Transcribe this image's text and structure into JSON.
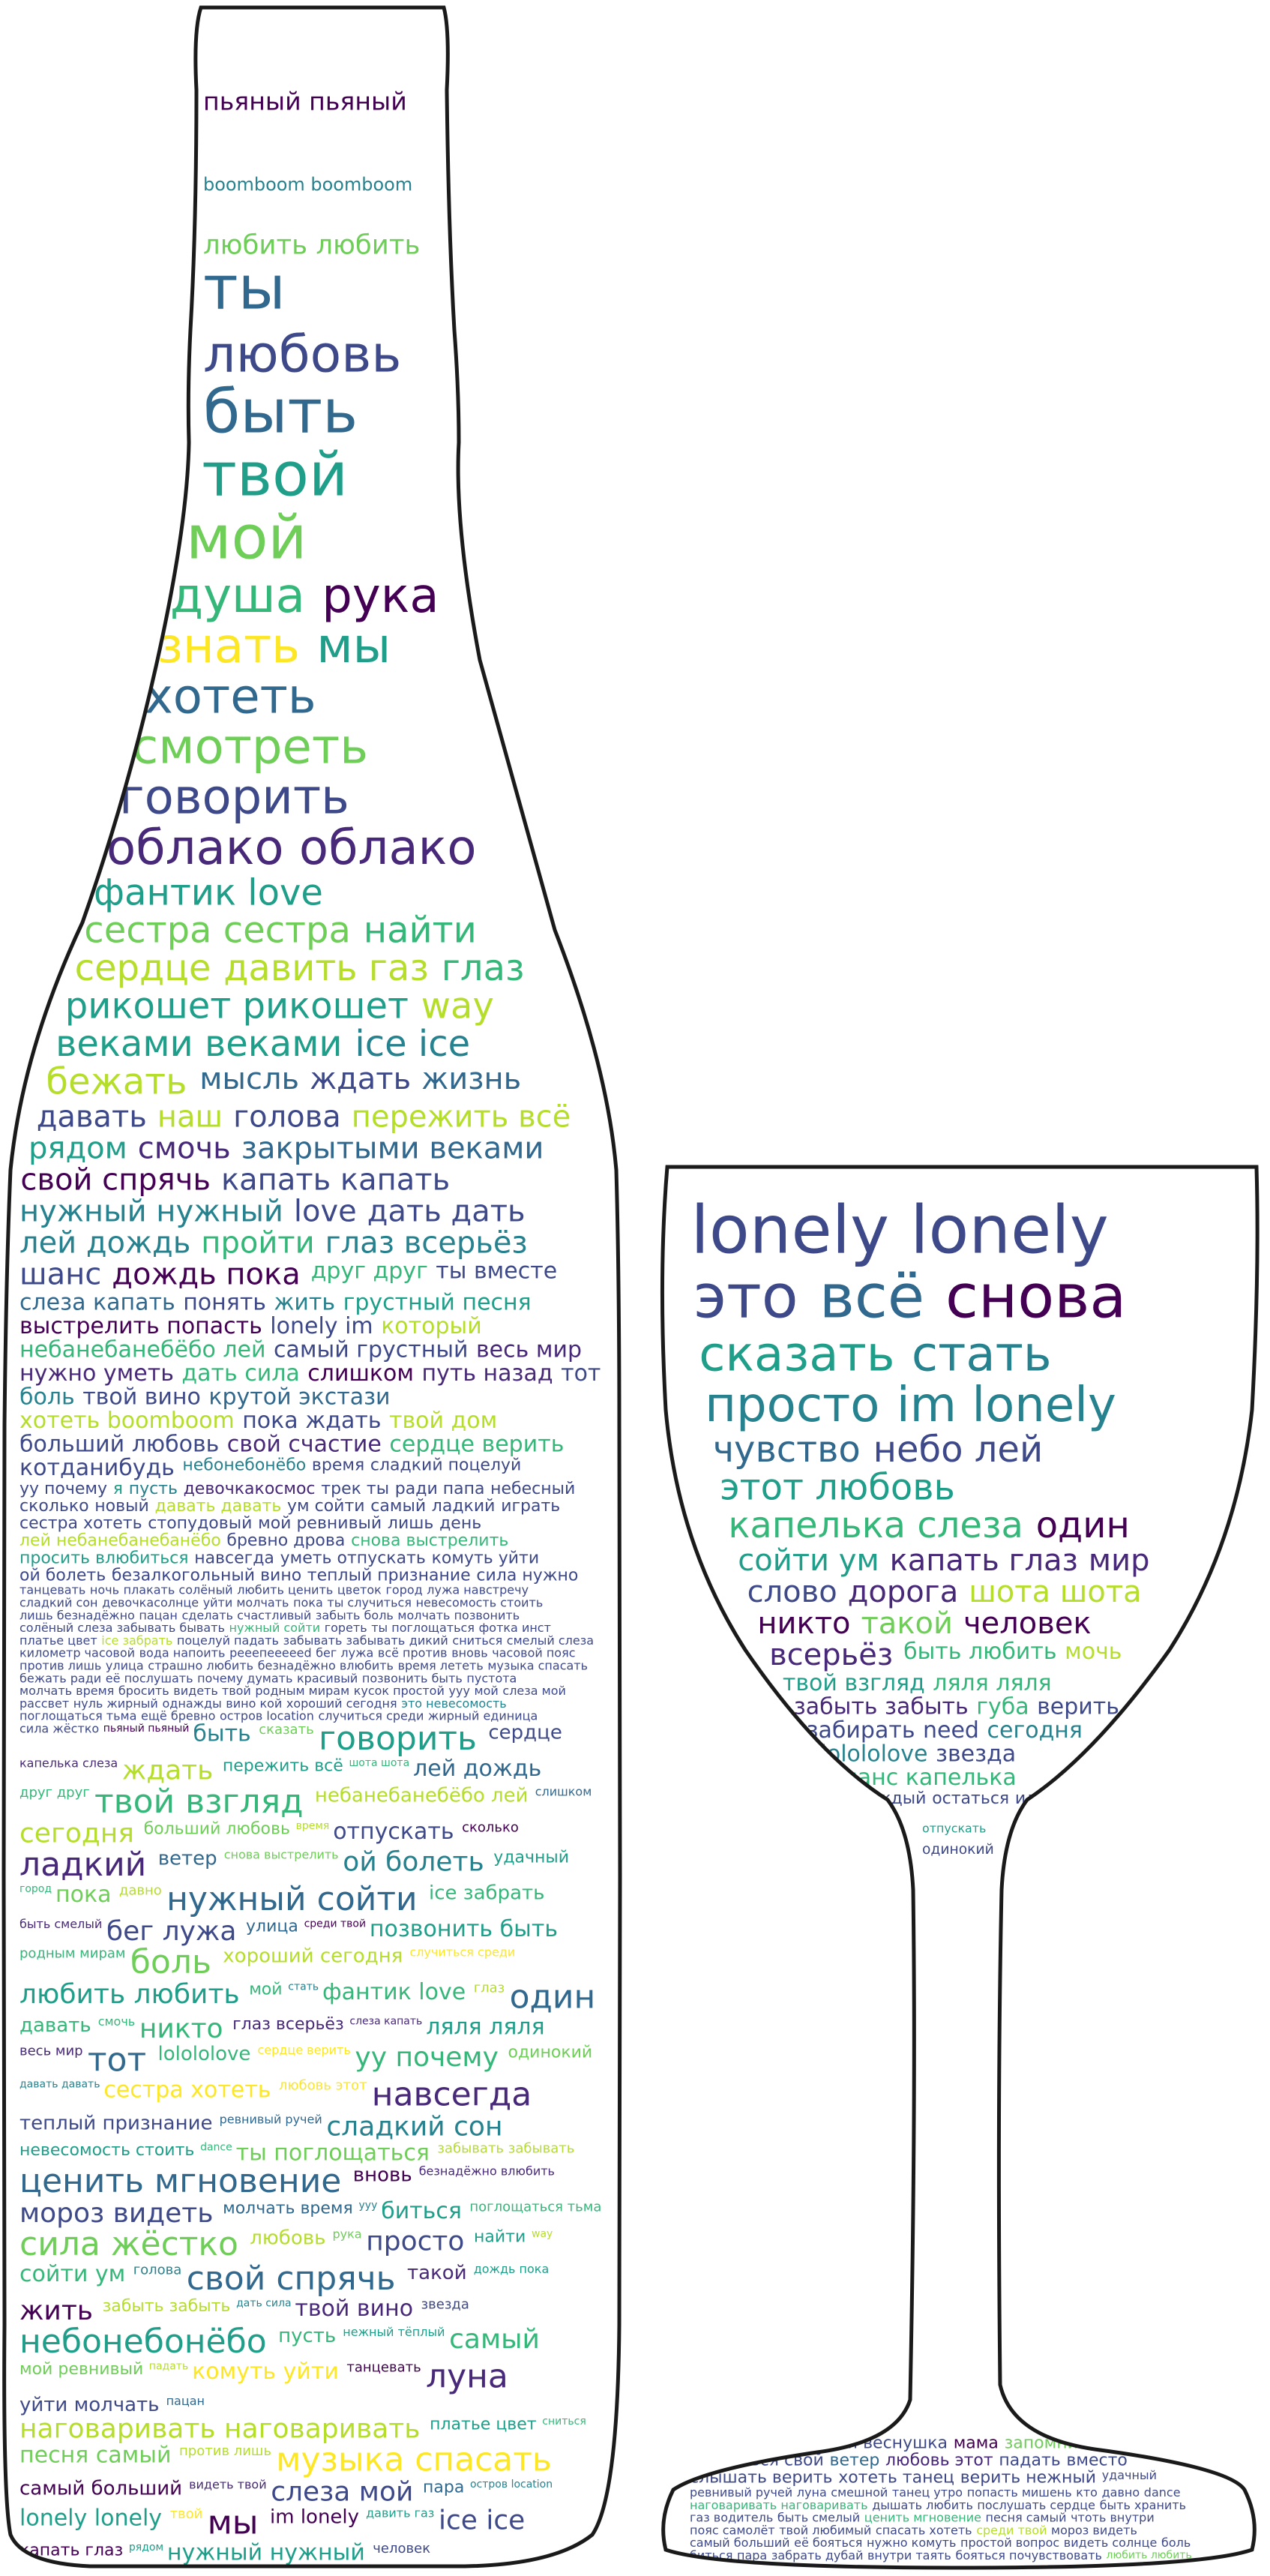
{
  "palette": {
    "background": "#ffffff",
    "outline": "#1a1a1a",
    "colors": [
      "#440154",
      "#482878",
      "#3e4989",
      "#31688e",
      "#26828e",
      "#1f9e89",
      "#35b779",
      "#6ece58",
      "#b5de2b",
      "#fde725"
    ]
  },
  "words": [
    {
      "t": "пьяный пьяный",
      "c": 0
    },
    {
      "t": "boomboom boomboom",
      "c": 4
    },
    {
      "t": "lonely lonely",
      "c": 2
    },
    {
      "t": "любить любить",
      "c": 7
    },
    {
      "t": "ты",
      "c": 3
    },
    {
      "t": "это",
      "c": 2
    },
    {
      "t": "любовь",
      "c": 2
    },
    {
      "t": "быть",
      "c": 3
    },
    {
      "t": "всё",
      "c": 3
    },
    {
      "t": "твой",
      "c": 5
    },
    {
      "t": "мой",
      "c": 7
    },
    {
      "t": "снова",
      "c": 0
    },
    {
      "t": "душа",
      "c": 6
    },
    {
      "t": "рука",
      "c": 0
    },
    {
      "t": "сказать",
      "c": 5
    },
    {
      "t": "знать",
      "c": 9
    },
    {
      "t": "мы",
      "c": 5
    },
    {
      "t": "стать",
      "c": 4
    },
    {
      "t": "хотеть",
      "c": 3
    },
    {
      "t": "смотреть",
      "c": 7
    },
    {
      "t": "просто",
      "c": 4
    },
    {
      "t": "говорить",
      "c": 2
    },
    {
      "t": "облако облако",
      "c": 1
    },
    {
      "t": "im lonely",
      "c": 4
    },
    {
      "t": "фантик love",
      "c": 5
    },
    {
      "t": "сестра сестра",
      "c": 7
    },
    {
      "t": "чувство",
      "c": 3
    },
    {
      "t": "найти",
      "c": 6
    },
    {
      "t": "сердце",
      "c": 8
    },
    {
      "t": "небо лей",
      "c": 2
    },
    {
      "t": "давить газ",
      "c": 8
    },
    {
      "t": "глаз",
      "c": 6
    },
    {
      "t": "этот любовь",
      "c": 5
    },
    {
      "t": "рикошет рикошет",
      "c": 5
    },
    {
      "t": "way",
      "c": 8
    },
    {
      "t": "капелька слеза",
      "c": 6
    },
    {
      "t": "веками веками",
      "c": 5
    },
    {
      "t": "ice ice",
      "c": 4
    },
    {
      "t": "один",
      "c": 0
    },
    {
      "t": "бежать",
      "c": 8
    },
    {
      "t": "мысль",
      "c": 3
    },
    {
      "t": "сойти ум",
      "c": 5
    },
    {
      "t": "ждать",
      "c": 2
    },
    {
      "t": "жизнь",
      "c": 3
    },
    {
      "t": "капать глаз",
      "c": 1
    },
    {
      "t": "давать",
      "c": 2
    },
    {
      "t": "наш",
      "c": 8
    },
    {
      "t": "мир",
      "c": 1
    },
    {
      "t": "голова",
      "c": 2
    },
    {
      "t": "пережить всё",
      "c": 8
    },
    {
      "t": "слово",
      "c": 2
    },
    {
      "t": "рядом",
      "c": 5
    },
    {
      "t": "смочь",
      "c": 1
    },
    {
      "t": "дорога",
      "c": 1
    },
    {
      "t": "закрытыми веками",
      "c": 3
    },
    {
      "t": "свой спрячь",
      "c": 0
    },
    {
      "t": "шота шота",
      "c": 8
    },
    {
      "t": "капать капать",
      "c": 2
    },
    {
      "t": "нужный нужный",
      "c": 4
    },
    {
      "t": "никто",
      "c": 0
    },
    {
      "t": "love",
      "c": 2
    },
    {
      "t": "дать дать",
      "c": 2
    },
    {
      "t": "такой",
      "c": 7
    },
    {
      "t": "лей дождь",
      "c": 4
    },
    {
      "t": "пройти",
      "c": 6
    },
    {
      "t": "человек",
      "c": 0
    },
    {
      "t": "глаз всерьёз",
      "c": 4
    },
    {
      "t": "шанс",
      "c": 2
    },
    {
      "t": "всерьёз",
      "c": 1
    },
    {
      "t": "дождь пока",
      "c": 0
    },
    {
      "t": "друг друг",
      "c": 6
    },
    {
      "t": "быть любить",
      "c": 6
    },
    {
      "t": "ты вместе",
      "c": 2
    },
    {
      "t": "слеза капать",
      "c": 3
    },
    {
      "t": "мочь",
      "c": 8
    },
    {
      "t": "понять",
      "c": 2
    },
    {
      "t": "жить",
      "c": 4
    },
    {
      "t": "твой взгляд",
      "c": 5
    },
    {
      "t": "грустный песня",
      "c": 5
    },
    {
      "t": "выстрелить попасть",
      "c": 0
    },
    {
      "t": "ляля ляля",
      "c": 6
    },
    {
      "t": "lonely im",
      "c": 2
    },
    {
      "t": "который",
      "c": 8
    },
    {
      "t": "забыть забыть",
      "c": 1
    },
    {
      "t": "небанебанебёбо лей",
      "c": 6
    },
    {
      "t": "самый грустный",
      "c": 2
    },
    {
      "t": "губа",
      "c": 6
    },
    {
      "t": "весь мир",
      "c": 1
    },
    {
      "t": "нужно уметь",
      "c": 1
    },
    {
      "t": "верить",
      "c": 2
    },
    {
      "t": "дать сила",
      "c": 6
    },
    {
      "t": "слишком",
      "c": 0
    },
    {
      "t": "забирать",
      "c": 2
    },
    {
      "t": "путь назад",
      "c": 1
    },
    {
      "t": "тот",
      "c": 2
    },
    {
      "t": "need",
      "c": 2
    },
    {
      "t": "боль",
      "c": 4
    },
    {
      "t": "твой вино",
      "c": 2
    },
    {
      "t": "сегодня",
      "c": 4
    },
    {
      "t": "крутой экстази",
      "c": 3
    },
    {
      "t": "хотеть boomboom",
      "c": 8
    },
    {
      "t": "lolololove",
      "c": 4
    },
    {
      "t": "пока ждать",
      "c": 2
    },
    {
      "t": "твой дом",
      "c": 8
    },
    {
      "t": "звезда",
      "c": 2
    },
    {
      "t": "больший любовь",
      "c": 2
    },
    {
      "t": "свой счастие",
      "c": 1
    },
    {
      "t": "шанс капелька",
      "c": 6
    },
    {
      "t": "сердце верить",
      "c": 6
    },
    {
      "t": "котданибудь",
      "c": 2
    },
    {
      "t": "каждый",
      "c": 2
    },
    {
      "t": "небонебонёбо",
      "c": 4
    },
    {
      "t": "время",
      "c": 2
    },
    {
      "t": "остаться",
      "c": 2
    },
    {
      "t": "сладкий поцелуй",
      "c": 2
    },
    {
      "t": "уу почему",
      "c": 2
    },
    {
      "t": "идти",
      "c": 2
    },
    {
      "t": "я",
      "c": 5
    },
    {
      "t": "пусть",
      "c": 4
    },
    {
      "t": "отпускать",
      "c": 5
    },
    {
      "t": "девочкакосмос",
      "c": 1
    },
    {
      "t": "трек ты",
      "c": 2
    },
    {
      "t": "одинокий",
      "c": 2
    },
    {
      "t": "ради папа",
      "c": 2
    },
    {
      "t": "небесный",
      "c": 2
    },
    {
      "t": "нежный тёплый",
      "c": 2
    },
    {
      "t": "сколько",
      "c": 2
    },
    {
      "t": "новый",
      "c": 2
    },
    {
      "t": "смешной веснушка",
      "c": 2
    },
    {
      "t": "давать давать",
      "c": 8
    },
    {
      "t": "ум сойти",
      "c": 2
    },
    {
      "t": "мама",
      "c": 0
    },
    {
      "t": "самый",
      "c": 2
    },
    {
      "t": "ладкий",
      "c": 2
    },
    {
      "t": "запомнить",
      "c": 7
    },
    {
      "t": "играть",
      "c": 2
    },
    {
      "t": "сестра хотеть",
      "c": 2
    },
    {
      "t": "вернуться свой",
      "c": 2
    },
    {
      "t": "стопудовый",
      "c": 2
    },
    {
      "t": "мой ревнивый",
      "c": 2
    },
    {
      "t": "ветер",
      "c": 3
    },
    {
      "t": "лишь",
      "c": 2
    },
    {
      "t": "день",
      "c": 2
    },
    {
      "t": "любовь этот",
      "c": 1
    },
    {
      "t": "лей небанебанебанёбо",
      "c": 8
    },
    {
      "t": "бревно дрова",
      "c": 2
    },
    {
      "t": "падать",
      "c": 2
    },
    {
      "t": "снова выстрелить",
      "c": 6
    },
    {
      "t": "просить влюбиться",
      "c": 5
    },
    {
      "t": "вместо",
      "c": 2
    },
    {
      "t": "навсегда",
      "c": 2
    },
    {
      "t": "уметь отпускать",
      "c": 2
    },
    {
      "t": "слышать верить",
      "c": 2
    },
    {
      "t": "комуть уйти",
      "c": 2
    },
    {
      "t": "ой болеть",
      "c": 2
    },
    {
      "t": "хотеть танец",
      "c": 2
    },
    {
      "t": "безалкогольный вино",
      "c": 2
    },
    {
      "t": "теплый признание",
      "c": 2
    },
    {
      "t": "верить нежный",
      "c": 2
    },
    {
      "t": "сила нужно",
      "c": 2
    },
    {
      "t": "танцевать",
      "c": 2
    },
    {
      "t": "удачный",
      "c": 2
    },
    {
      "t": "ночь",
      "c": 2
    },
    {
      "t": "плакать солёный",
      "c": 2
    },
    {
      "t": "ревнивый ручей",
      "c": 2
    },
    {
      "t": "любить ценить",
      "c": 2
    },
    {
      "t": "цветок",
      "c": 2
    },
    {
      "t": "луна",
      "c": 2
    },
    {
      "t": "город",
      "c": 2
    },
    {
      "t": "лужа навстречу",
      "c": 2
    },
    {
      "t": "смешной",
      "c": 2
    },
    {
      "t": "сладкий сон",
      "c": 2
    },
    {
      "t": "девочкасолнце",
      "c": 2
    },
    {
      "t": "танец утро",
      "c": 2
    },
    {
      "t": "уйти молчать",
      "c": 2
    },
    {
      "t": "пока",
      "c": 2
    },
    {
      "t": "попасть мишень",
      "c": 2
    },
    {
      "t": "ты случиться",
      "c": 2
    },
    {
      "t": "невесомость стоить",
      "c": 2
    },
    {
      "t": "кто",
      "c": 2
    },
    {
      "t": "лишь безнадёжно",
      "c": 2
    },
    {
      "t": "пацан",
      "c": 2
    },
    {
      "t": "давно",
      "c": 2
    },
    {
      "t": "сделать счастливый",
      "c": 2
    },
    {
      "t": "забыть боль",
      "c": 2
    },
    {
      "t": "dance",
      "c": 2
    },
    {
      "t": "молчать позвонить",
      "c": 2
    },
    {
      "t": "солёный слеза забывать бывать",
      "c": 2
    },
    {
      "t": "наговаривать наговаривать",
      "c": 6
    },
    {
      "t": "нужный сойти",
      "c": 6
    },
    {
      "t": "гореть",
      "c": 2
    },
    {
      "t": "дышать любить",
      "c": 2
    },
    {
      "t": "ты поглощаться",
      "c": 2
    },
    {
      "t": "фотка инст",
      "c": 2
    },
    {
      "t": "послушать сердце",
      "c": 2
    },
    {
      "t": "платье цвет",
      "c": 2
    },
    {
      "t": "ice забрать",
      "c": 8
    },
    {
      "t": "быть хранить",
      "c": 2
    },
    {
      "t": "поцелуй падать",
      "c": 2
    },
    {
      "t": "забывать забывать",
      "c": 2
    },
    {
      "t": "газ водитель",
      "c": 2
    },
    {
      "t": "дикий",
      "c": 2
    },
    {
      "t": "сниться",
      "c": 2
    },
    {
      "t": "быть смелый",
      "c": 2
    },
    {
      "t": "смелый слеза",
      "c": 2
    },
    {
      "t": "километр часовой",
      "c": 2
    },
    {
      "t": "ценить мгновение",
      "c": 6
    },
    {
      "t": "вода напоить",
      "c": 2
    },
    {
      "t": "рееепееееed",
      "c": 2
    },
    {
      "t": "песня самый",
      "c": 2
    },
    {
      "t": "бег лужа",
      "c": 2
    },
    {
      "t": "всё против",
      "c": 2
    },
    {
      "t": "чтоть внутри",
      "c": 2
    },
    {
      "t": "вновь",
      "c": 2
    },
    {
      "t": "часовой пояс",
      "c": 2
    },
    {
      "t": "пояс самолёт",
      "c": 2
    },
    {
      "t": "против лишь",
      "c": 2
    },
    {
      "t": "улица",
      "c": 2
    },
    {
      "t": "твой любимый",
      "c": 2
    },
    {
      "t": "страшно любить",
      "c": 2
    },
    {
      "t": "безнадёжно влюбить",
      "c": 2
    },
    {
      "t": "спасать хотеть",
      "c": 2
    },
    {
      "t": "время лететь",
      "c": 2
    },
    {
      "t": "музыка спасать",
      "c": 2
    },
    {
      "t": "среди твой",
      "c": 8
    },
    {
      "t": "бежать ради",
      "c": 2
    },
    {
      "t": "её послушать",
      "c": 2
    },
    {
      "t": "мороз видеть",
      "c": 2
    },
    {
      "t": "почему думать",
      "c": 2
    },
    {
      "t": "красивый",
      "c": 2
    },
    {
      "t": "самый больший",
      "c": 2
    },
    {
      "t": "позвонить быть",
      "c": 2
    },
    {
      "t": "пустота",
      "c": 2
    },
    {
      "t": "её бояться",
      "c": 2
    },
    {
      "t": "молчать время",
      "c": 2
    },
    {
      "t": "бросить",
      "c": 2
    },
    {
      "t": "нужно комуть",
      "c": 2
    },
    {
      "t": "видеть твой",
      "c": 2
    },
    {
      "t": "родным мирам",
      "c": 2
    },
    {
      "t": "простой вопрос",
      "c": 2
    },
    {
      "t": "кусок простой",
      "c": 2
    },
    {
      "t": "уyу",
      "c": 2
    },
    {
      "t": "видеть солнце",
      "c": 2
    },
    {
      "t": "мой",
      "c": 2
    },
    {
      "t": "слеза мой",
      "c": 2
    },
    {
      "t": "боль",
      "c": 2
    },
    {
      "t": "рассвет",
      "c": 2
    },
    {
      "t": "нуль жирный",
      "c": 2
    },
    {
      "t": "биться",
      "c": 2
    },
    {
      "t": "однажды",
      "c": 2
    },
    {
      "t": "вино кой",
      "c": 2
    },
    {
      "t": "пара",
      "c": 2
    },
    {
      "t": "хороший сегодня",
      "c": 2
    },
    {
      "t": "это невесомость",
      "c": 4
    },
    {
      "t": "забрать дубай",
      "c": 2
    },
    {
      "t": "поглощаться тьма",
      "c": 2
    },
    {
      "t": "ещё бревно",
      "c": 2
    },
    {
      "t": "внутри таять",
      "c": 2
    },
    {
      "t": "остров location",
      "c": 2
    },
    {
      "t": "случиться среди",
      "c": 2
    },
    {
      "t": "бояться почувствовать",
      "c": 2
    },
    {
      "t": "жирный единица",
      "c": 2
    },
    {
      "t": "сила жёстко",
      "c": 2
    }
  ]
}
